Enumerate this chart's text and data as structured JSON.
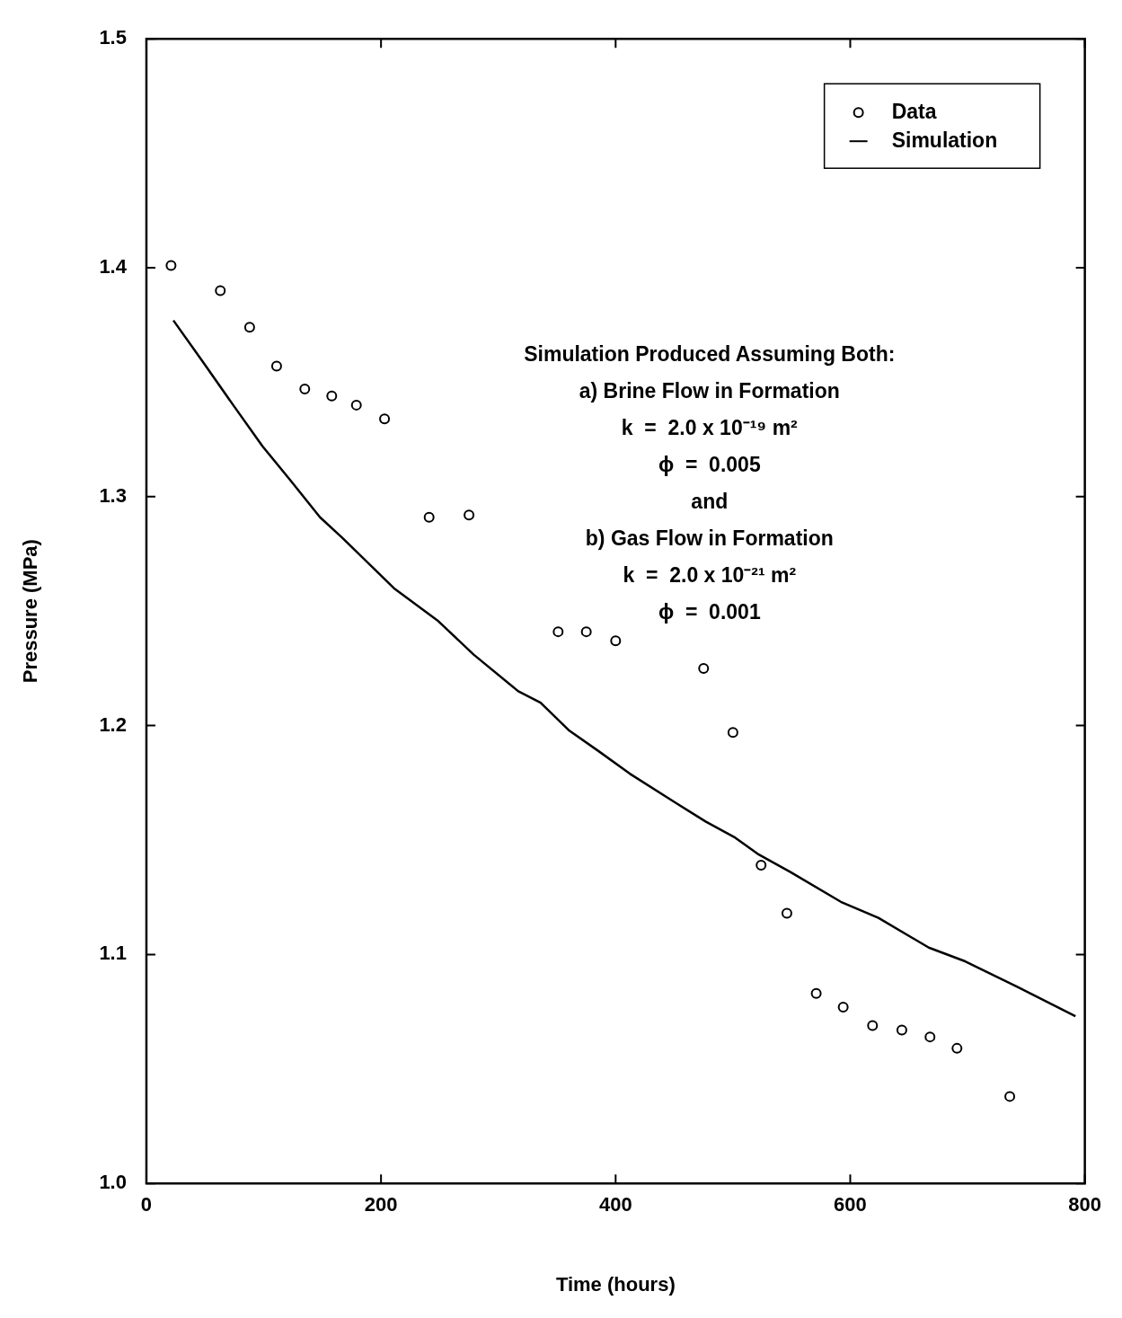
{
  "chart_data": {
    "type": "scatter",
    "xlabel": "Time (hours)",
    "ylabel": "Pressure (MPa)",
    "xlim": [
      0,
      800
    ],
    "xticks": [
      0,
      200,
      400,
      600,
      800
    ],
    "ylim": [
      1.0,
      1.5
    ],
    "yticks": [
      {
        "value": 1.0,
        "label": "1.0"
      },
      1.1,
      1.2,
      1.3,
      1.4,
      1.5
    ],
    "grid": false,
    "legend": "top right",
    "series": [
      {
        "name": "Data",
        "marker": "circle",
        "color": "#000000",
        "x": [
          21,
          63,
          88,
          111,
          135,
          158,
          179,
          203,
          241,
          275,
          351,
          375,
          400,
          475,
          500,
          524,
          546,
          571,
          594,
          619,
          644,
          668,
          691,
          736
        ],
        "values": [
          1.401,
          1.39,
          1.374,
          1.357,
          1.347,
          1.344,
          1.34,
          1.334,
          1.291,
          1.292,
          1.241,
          1.241,
          1.237,
          1.225,
          1.197,
          1.139,
          1.118,
          1.083,
          1.077,
          1.069,
          1.067,
          1.064,
          1.059,
          1.038
        ]
      },
      {
        "name": "Simulation",
        "type": "line",
        "marker": "none",
        "color": "#000000",
        "x": [
          23,
          48,
          74,
          99,
          123,
          148,
          167,
          211,
          248,
          279,
          317,
          336,
          360,
          385,
          412,
          452,
          477,
          502,
          521,
          549,
          592,
          624,
          667,
          698,
          742,
          792
        ],
        "values": [
          1.377,
          1.359,
          1.34,
          1.322,
          1.307,
          1.291,
          1.282,
          1.26,
          1.246,
          1.231,
          1.215,
          1.21,
          1.198,
          1.189,
          1.179,
          1.166,
          1.158,
          1.151,
          1.144,
          1.136,
          1.123,
          1.116,
          1.103,
          1.097,
          1.086,
          1.073
        ]
      }
    ],
    "annotations": [
      "Simulation Produced Assuming Both:",
      "a) Brine Flow in Formation",
      "k  =  2.0 x 10⁻¹⁹ m²",
      "ϕ  =  0.005",
      "and",
      "b) Gas Flow in Formation",
      "k  =  2.0 x 10⁻²¹ m²",
      "ϕ  =  0.001"
    ]
  }
}
